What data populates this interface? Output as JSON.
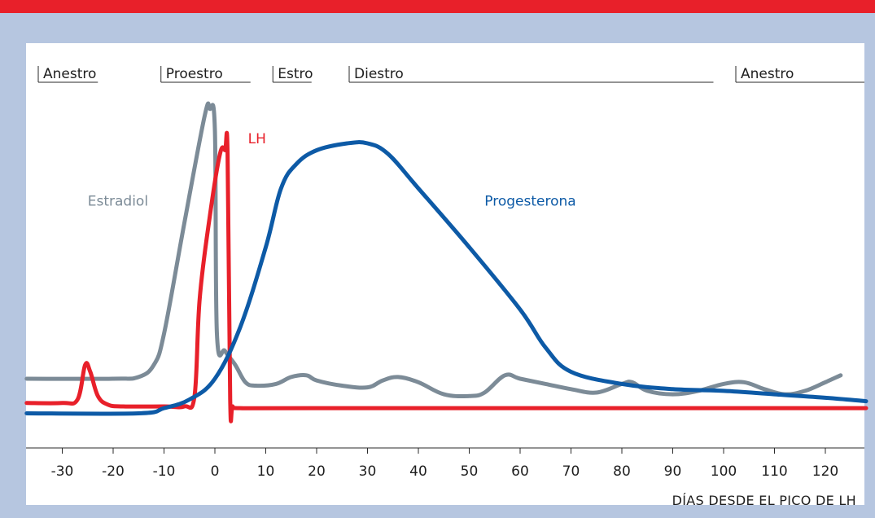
{
  "chart_data": {
    "type": "line",
    "title": "",
    "xlabel": "DÍAS DESDE EL PICO DE LH",
    "ylabel": "",
    "xlim": [
      -38,
      128
    ],
    "ylim": [
      0,
      100
    ],
    "grid": false,
    "x_ticks": [
      -30,
      -20,
      -10,
      0,
      10,
      20,
      30,
      40,
      50,
      60,
      70,
      80,
      90,
      100,
      110,
      120
    ],
    "phases": [
      {
        "label": "Anestro",
        "start": -38,
        "end": -23
      },
      {
        "label": "Proestro",
        "start": -13,
        "end": 7
      },
      {
        "label": "Estro",
        "start": 9,
        "end": 19
      },
      {
        "label": "Diestro",
        "start": 24,
        "end": 98
      },
      {
        "label": "Anestro",
        "start": 100,
        "end": 128
      }
    ],
    "series": [
      {
        "name": "Estradiol",
        "color": "#7c8b97",
        "label_at": [
          -25,
          70
        ],
        "points": [
          [
            -37,
            20
          ],
          [
            -20,
            20
          ],
          [
            -15,
            20.5
          ],
          [
            -12,
            24
          ],
          [
            -10,
            33
          ],
          [
            -6,
            65
          ],
          [
            -2,
            96
          ],
          [
            -1,
            98
          ],
          [
            0,
            92
          ],
          [
            0.4,
            33
          ],
          [
            2,
            28
          ],
          [
            4,
            24
          ],
          [
            6,
            19
          ],
          [
            8,
            18
          ],
          [
            12,
            18.5
          ],
          [
            15,
            20.5
          ],
          [
            18,
            21
          ],
          [
            20,
            19.5
          ],
          [
            25,
            18
          ],
          [
            30,
            17.5
          ],
          [
            33,
            19.5
          ],
          [
            36,
            20.5
          ],
          [
            40,
            19
          ],
          [
            45,
            15.5
          ],
          [
            50,
            15
          ],
          [
            53,
            16
          ],
          [
            57,
            21
          ],
          [
            60,
            20
          ],
          [
            65,
            18.5
          ],
          [
            70,
            17
          ],
          [
            75,
            16
          ],
          [
            80,
            18.5
          ],
          [
            82,
            19
          ],
          [
            85,
            16.5
          ],
          [
            90,
            15.5
          ],
          [
            95,
            16.5
          ],
          [
            100,
            18.5
          ],
          [
            104,
            19
          ],
          [
            108,
            17
          ],
          [
            112,
            15.5
          ],
          [
            116,
            16.5
          ],
          [
            120,
            19
          ],
          [
            123,
            21
          ]
        ]
      },
      {
        "name": "LH",
        "color": "#e8202a",
        "label_at": [
          6.5,
          88
        ],
        "points": [
          [
            -37,
            13
          ],
          [
            -30,
            13
          ],
          [
            -27,
            14
          ],
          [
            -25.5,
            24
          ],
          [
            -24.5,
            22
          ],
          [
            -23,
            15
          ],
          [
            -21,
            12.5
          ],
          [
            -18,
            12
          ],
          [
            -10,
            12
          ],
          [
            -6,
            12
          ],
          [
            -4,
            15
          ],
          [
            -3,
            43
          ],
          [
            -1,
            67
          ],
          [
            1,
            85
          ],
          [
            2,
            86
          ],
          [
            2.5,
            85
          ],
          [
            3,
            14
          ],
          [
            3.5,
            12
          ],
          [
            5,
            11.5
          ],
          [
            20,
            11.5
          ],
          [
            128,
            11.5
          ]
        ]
      },
      {
        "name": "Progesterona",
        "color": "#0d5aa6",
        "label_at": [
          53,
          70
        ],
        "points": [
          [
            -37,
            10
          ],
          [
            -15,
            10
          ],
          [
            -10,
            11.5
          ],
          [
            -5,
            14
          ],
          [
            0,
            20
          ],
          [
            5,
            35
          ],
          [
            10,
            58
          ],
          [
            13,
            75
          ],
          [
            16,
            82
          ],
          [
            20,
            86
          ],
          [
            26,
            88
          ],
          [
            30,
            88
          ],
          [
            34,
            85
          ],
          [
            40,
            75
          ],
          [
            50,
            58
          ],
          [
            60,
            40
          ],
          [
            65,
            29
          ],
          [
            70,
            22
          ],
          [
            80,
            18.5
          ],
          [
            90,
            17
          ],
          [
            100,
            16.5
          ],
          [
            110,
            15.5
          ],
          [
            120,
            14.5
          ],
          [
            128,
            13.5
          ]
        ]
      }
    ]
  }
}
